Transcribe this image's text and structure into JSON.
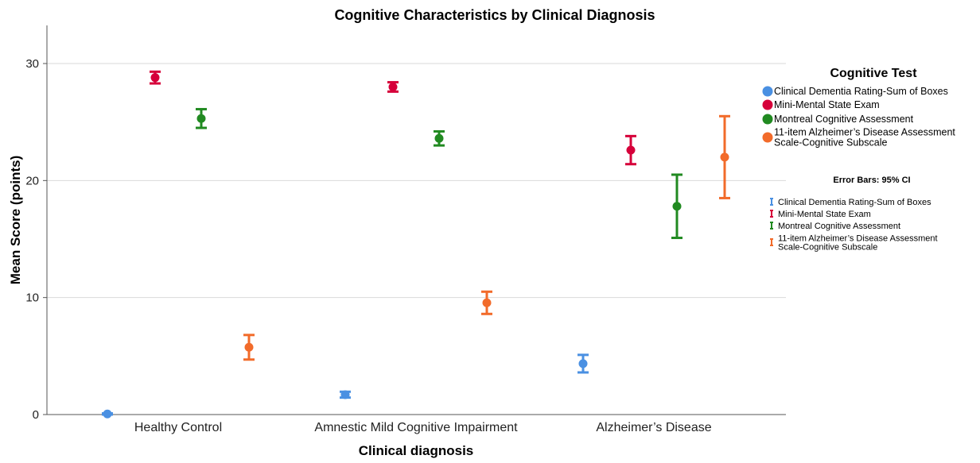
{
  "chart_data": {
    "type": "scatter",
    "title": "Cognitive Characteristics by Clinical Diagnosis",
    "xlabel": "Clinical diagnosis",
    "ylabel": "Mean Score (points)",
    "ylim": [
      0,
      33
    ],
    "yticks": [
      "0",
      "10",
      "20",
      "30"
    ],
    "ytick_values": [
      0,
      10,
      20,
      30
    ],
    "grid": "horizontal",
    "categories": [
      "Healthy Control",
      "Amnestic Mild Cognitive Impairment",
      "Alzheimer’s Disease"
    ],
    "legend_title": "Cognitive Test",
    "legend_placement": "right",
    "error_bar_title": "Error Bars: 95% CI",
    "series": [
      {
        "name_lines": [
          "Clinical Dementia Rating-Sum of Boxes"
        ],
        "color": "#4a90e2",
        "values": [
          0.05,
          1.7,
          4.35
        ],
        "ci_low": [
          0.0,
          1.45,
          3.6
        ],
        "ci_high": [
          0.1,
          1.95,
          5.1
        ]
      },
      {
        "name_lines": [
          "Mini-Mental State Exam"
        ],
        "color": "#d6003a",
        "values": [
          28.8,
          28.0,
          22.6
        ],
        "ci_low": [
          28.3,
          27.6,
          21.4
        ],
        "ci_high": [
          29.3,
          28.4,
          23.8
        ]
      },
      {
        "name_lines": [
          "Montreal Cognitive Assessment"
        ],
        "color": "#218a21",
        "values": [
          25.3,
          23.6,
          17.8
        ],
        "ci_low": [
          24.5,
          23.0,
          15.1
        ],
        "ci_high": [
          26.1,
          24.2,
          20.5
        ]
      },
      {
        "name_lines": [
          "11-item Alzheimer’s Disease Assessment",
          "Scale-Cognitive Subscale"
        ],
        "color": "#f26b2a",
        "values": [
          5.75,
          9.55,
          22.0
        ],
        "ci_low": [
          4.7,
          8.6,
          18.5
        ],
        "ci_high": [
          6.8,
          10.5,
          25.5
        ]
      }
    ]
  }
}
